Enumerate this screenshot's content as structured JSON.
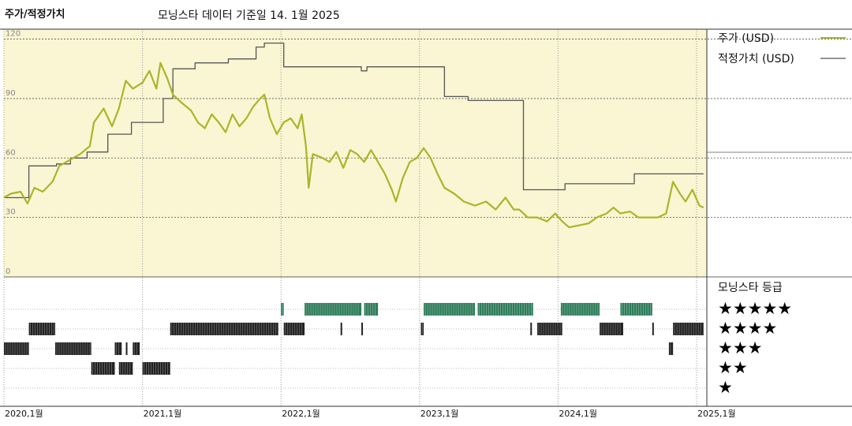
{
  "header": {
    "title": "주가/적정가치",
    "subtitle": "모닝스타 데이터 기준일 14. 1월 2025"
  },
  "legend": {
    "price_label": "주가 (USD)",
    "fair_label": "적정가치 (USD)",
    "rating_title": "모닝스타 등급",
    "stars": [
      "★★★★★",
      "★★★★",
      "★★★",
      "★★",
      "★"
    ]
  },
  "colors": {
    "price": "#a9b52a",
    "fair": "#555555",
    "panel_bg": "#faf5d2",
    "five_star": "#2e7d5b",
    "band": "#222222"
  },
  "chart_data": [
    {
      "type": "line",
      "title": "",
      "ylim": [
        0,
        125
      ],
      "yticks": [
        "0",
        "30",
        "60",
        "90",
        "120"
      ],
      "xticks": [
        "2020,1월",
        "2021,1월",
        "2022,1월",
        "2023,1월",
        "2024,1월",
        "2025,1월"
      ],
      "series": [
        {
          "name": "주가 (USD)",
          "points": [
            [
              2020.0,
              40
            ],
            [
              2020.05,
              42
            ],
            [
              2020.12,
              43
            ],
            [
              2020.17,
              37
            ],
            [
              2020.22,
              45
            ],
            [
              2020.28,
              43
            ],
            [
              2020.35,
              48
            ],
            [
              2020.4,
              56
            ],
            [
              2020.45,
              58
            ],
            [
              2020.5,
              60
            ],
            [
              2020.55,
              62
            ],
            [
              2020.62,
              66
            ],
            [
              2020.65,
              78
            ],
            [
              2020.72,
              85
            ],
            [
              2020.78,
              76
            ],
            [
              2020.83,
              85
            ],
            [
              2020.88,
              99
            ],
            [
              2020.93,
              95
            ],
            [
              2021.0,
              98
            ],
            [
              2021.05,
              104
            ],
            [
              2021.1,
              95
            ],
            [
              2021.13,
              108
            ],
            [
              2021.18,
              100
            ],
            [
              2021.22,
              92
            ],
            [
              2021.28,
              88
            ],
            [
              2021.35,
              84
            ],
            [
              2021.4,
              78
            ],
            [
              2021.45,
              75
            ],
            [
              2021.5,
              82
            ],
            [
              2021.55,
              78
            ],
            [
              2021.6,
              73
            ],
            [
              2021.65,
              82
            ],
            [
              2021.7,
              76
            ],
            [
              2021.75,
              80
            ],
            [
              2021.8,
              86
            ],
            [
              2021.85,
              90
            ],
            [
              2021.88,
              92
            ],
            [
              2021.92,
              80
            ],
            [
              2021.97,
              72
            ],
            [
              2022.02,
              78
            ],
            [
              2022.07,
              80
            ],
            [
              2022.12,
              75
            ],
            [
              2022.15,
              82
            ],
            [
              2022.18,
              66
            ],
            [
              2022.2,
              45
            ],
            [
              2022.23,
              62
            ],
            [
              2022.3,
              60
            ],
            [
              2022.35,
              58
            ],
            [
              2022.4,
              63
            ],
            [
              2022.45,
              55
            ],
            [
              2022.5,
              64
            ],
            [
              2022.55,
              62
            ],
            [
              2022.6,
              58
            ],
            [
              2022.65,
              64
            ],
            [
              2022.7,
              58
            ],
            [
              2022.75,
              52
            ],
            [
              2022.8,
              44
            ],
            [
              2022.83,
              38
            ],
            [
              2022.88,
              50
            ],
            [
              2022.93,
              58
            ],
            [
              2022.98,
              60
            ],
            [
              2023.03,
              65
            ],
            [
              2023.08,
              60
            ],
            [
              2023.13,
              52
            ],
            [
              2023.18,
              45
            ],
            [
              2023.25,
              42
            ],
            [
              2023.32,
              38
            ],
            [
              2023.4,
              36
            ],
            [
              2023.48,
              38
            ],
            [
              2023.55,
              34
            ],
            [
              2023.62,
              40
            ],
            [
              2023.68,
              34
            ],
            [
              2023.72,
              34
            ],
            [
              2023.78,
              30
            ],
            [
              2023.85,
              30
            ],
            [
              2023.92,
              28
            ],
            [
              2023.98,
              32
            ],
            [
              2024.03,
              28
            ],
            [
              2024.08,
              25
            ],
            [
              2024.15,
              26
            ],
            [
              2024.22,
              27
            ],
            [
              2024.28,
              30
            ],
            [
              2024.35,
              32
            ],
            [
              2024.4,
              35
            ],
            [
              2024.45,
              32
            ],
            [
              2024.52,
              33
            ],
            [
              2024.58,
              30
            ],
            [
              2024.65,
              30
            ],
            [
              2024.72,
              30
            ],
            [
              2024.78,
              32
            ],
            [
              2024.83,
              48
            ],
            [
              2024.88,
              42
            ],
            [
              2024.92,
              38
            ],
            [
              2024.97,
              44
            ],
            [
              2025.02,
              36
            ],
            [
              2025.05,
              35
            ]
          ]
        },
        {
          "name": "적정가치 (USD)",
          "points": [
            [
              2020.0,
              40
            ],
            [
              2020.18,
              40
            ],
            [
              2020.18,
              56
            ],
            [
              2020.38,
              56
            ],
            [
              2020.38,
              57
            ],
            [
              2020.48,
              57
            ],
            [
              2020.48,
              60
            ],
            [
              2020.6,
              60
            ],
            [
              2020.6,
              63
            ],
            [
              2020.75,
              63
            ],
            [
              2020.75,
              72
            ],
            [
              2020.92,
              72
            ],
            [
              2020.92,
              78
            ],
            [
              2021.15,
              78
            ],
            [
              2021.15,
              90
            ],
            [
              2021.22,
              90
            ],
            [
              2021.22,
              105
            ],
            [
              2021.38,
              105
            ],
            [
              2021.38,
              108
            ],
            [
              2021.62,
              108
            ],
            [
              2021.62,
              110
            ],
            [
              2021.82,
              110
            ],
            [
              2021.82,
              116
            ],
            [
              2021.88,
              116
            ],
            [
              2021.88,
              118
            ],
            [
              2022.02,
              118
            ],
            [
              2022.02,
              106
            ],
            [
              2022.58,
              106
            ],
            [
              2022.58,
              104
            ],
            [
              2022.62,
              104
            ],
            [
              2022.62,
              106
            ],
            [
              2022.7,
              106
            ],
            [
              2022.7,
              106
            ],
            [
              2023.18,
              106
            ],
            [
              2023.18,
              91
            ],
            [
              2023.35,
              91
            ],
            [
              2023.35,
              89
            ],
            [
              2023.75,
              89
            ],
            [
              2023.75,
              44
            ],
            [
              2024.05,
              44
            ],
            [
              2024.05,
              47
            ],
            [
              2024.55,
              47
            ],
            [
              2024.55,
              52
            ],
            [
              2025.05,
              52
            ]
          ]
        }
      ]
    },
    {
      "type": "heatmap",
      "title": "모닝스타 등급",
      "rows": [
        "★★★★★",
        "★★★★",
        "★★★",
        "★★",
        "★"
      ],
      "periods": [
        {
          "stars": 5,
          "start": 2022.0,
          "end": 2022.02
        },
        {
          "stars": 5,
          "start": 2022.17,
          "end": 2022.58
        },
        {
          "stars": 5,
          "start": 2022.6,
          "end": 2022.7
        },
        {
          "stars": 5,
          "start": 2023.03,
          "end": 2023.4
        },
        {
          "stars": 5,
          "start": 2023.42,
          "end": 2023.82
        },
        {
          "stars": 5,
          "start": 2024.02,
          "end": 2024.3
        },
        {
          "stars": 5,
          "start": 2024.45,
          "end": 2024.68
        },
        {
          "stars": 4,
          "start": 2020.18,
          "end": 2020.37
        },
        {
          "stars": 4,
          "start": 2021.2,
          "end": 2021.98
        },
        {
          "stars": 4,
          "start": 2022.02,
          "end": 2022.17
        },
        {
          "stars": 4,
          "start": 2022.43,
          "end": 2022.44
        },
        {
          "stars": 4,
          "start": 2022.58,
          "end": 2022.59
        },
        {
          "stars": 4,
          "start": 2023.01,
          "end": 2023.03
        },
        {
          "stars": 4,
          "start": 2023.8,
          "end": 2023.81
        },
        {
          "stars": 4,
          "start": 2023.85,
          "end": 2024.03
        },
        {
          "stars": 4,
          "start": 2024.3,
          "end": 2024.47
        },
        {
          "stars": 4,
          "start": 2024.68,
          "end": 2024.69
        },
        {
          "stars": 4,
          "start": 2024.83,
          "end": 2025.05
        },
        {
          "stars": 3,
          "start": 2020.0,
          "end": 2020.18
        },
        {
          "stars": 3,
          "start": 2020.37,
          "end": 2020.63
        },
        {
          "stars": 3,
          "start": 2020.8,
          "end": 2020.85
        },
        {
          "stars": 3,
          "start": 2020.88,
          "end": 2020.89
        },
        {
          "stars": 3,
          "start": 2020.93,
          "end": 2020.98
        },
        {
          "stars": 3,
          "start": 2024.8,
          "end": 2024.83
        },
        {
          "stars": 2,
          "start": 2020.63,
          "end": 2020.8
        },
        {
          "stars": 2,
          "start": 2020.83,
          "end": 2020.93
        },
        {
          "stars": 2,
          "start": 2021.0,
          "end": 2021.2
        }
      ]
    }
  ]
}
